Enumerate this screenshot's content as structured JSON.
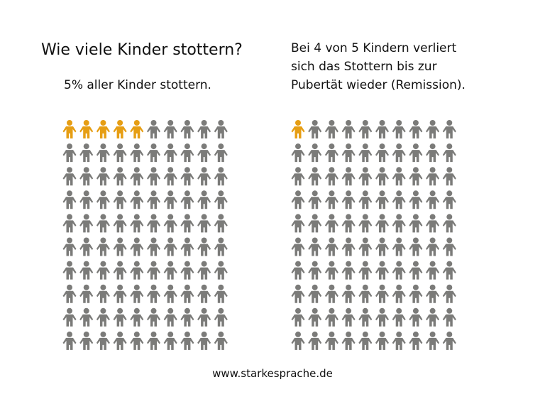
{
  "title": "Wie viele Kinder stottern?",
  "subtitle": "5% aller Kinder stottern.",
  "right_text": [
    "Bei 4 von 5 Kindern verliert",
    "sich das Stottern bis zur",
    "Pubertät wieder (Remission)."
  ],
  "footer": "www.starkesprache.de",
  "colors": {
    "highlight": "#E69E14",
    "base": "#7B7B79"
  },
  "chart_data": [
    {
      "type": "pictogram",
      "icon": "child-icon",
      "rows": 10,
      "columns": 10,
      "total": 100,
      "highlighted": 5
    },
    {
      "type": "pictogram",
      "icon": "child-icon",
      "rows": 10,
      "columns": 10,
      "total": 100,
      "highlighted": 1
    }
  ]
}
